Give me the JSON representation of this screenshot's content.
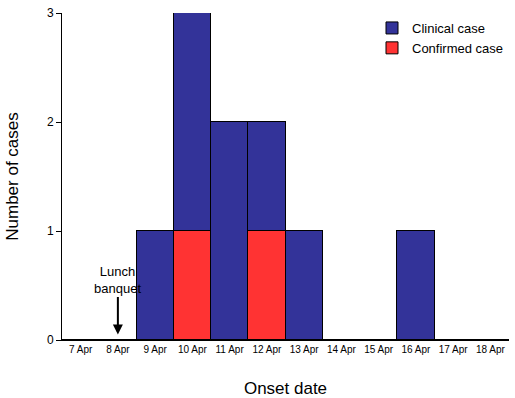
{
  "chart_data": {
    "type": "bar",
    "stacked": true,
    "xlabel": "Onset date",
    "ylabel": "Number of cases",
    "categories": [
      "7 Apr",
      "8 Apr",
      "9 Apr",
      "10 Apr",
      "11 Apr",
      "12 Apr",
      "13 Apr",
      "14 Apr",
      "15 Apr",
      "16 Apr",
      "17 Apr",
      "18 Apr"
    ],
    "series": [
      {
        "name": "Confirmed case",
        "color": "#ff3333",
        "values": [
          0,
          0,
          0,
          1,
          0,
          1,
          0,
          0,
          0,
          0,
          0,
          0
        ]
      },
      {
        "name": "Clinical case",
        "color": "#333399",
        "values": [
          0,
          0,
          1,
          2,
          2,
          1,
          1,
          0,
          0,
          1,
          0,
          0
        ]
      }
    ],
    "ylim": [
      0,
      3
    ],
    "yticks": [
      0,
      1,
      2,
      3
    ],
    "grid": false,
    "legend": "top right",
    "annotations": [
      {
        "text": "Lunch banquet",
        "x": "8 Apr"
      }
    ]
  }
}
